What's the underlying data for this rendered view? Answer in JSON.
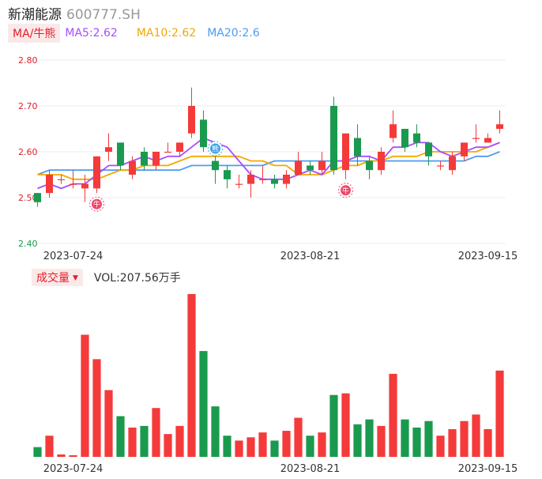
{
  "header": {
    "name": "新潮能源",
    "code": "600777.SH"
  },
  "ma": {
    "toggle_label": "MA/牛熊",
    "ma5": "MA5:2.62",
    "ma10": "MA10:2.62",
    "ma20": "MA20:2.6"
  },
  "volume": {
    "toggle_label": "成交量",
    "value": "VOL:207.56万手"
  },
  "colors": {
    "up": "#f43a3a",
    "down": "#1a9a4e",
    "ma5": "#a64dff",
    "ma10": "#f2a900",
    "ma20": "#4d9cf0"
  },
  "chart_data": {
    "type": "candlestick",
    "y_ticks": [
      "2.80",
      "2.70",
      "2.60",
      "2.50",
      "2.40"
    ],
    "ylim": [
      2.4,
      2.8
    ],
    "x_ticks": [
      {
        "label": "2023-07-24",
        "index": 3
      },
      {
        "label": "2023-08-21",
        "index": 23
      },
      {
        "label": "2023-09-15",
        "index": 38
      }
    ],
    "candles": [
      {
        "o": 2.51,
        "c": 2.49,
        "h": 2.51,
        "l": 2.48
      },
      {
        "o": 2.51,
        "c": 2.55,
        "h": 2.56,
        "l": 2.5
      },
      {
        "o": 2.54,
        "c": 2.54,
        "h": 2.55,
        "l": 2.53
      },
      {
        "o": 2.53,
        "c": 2.53,
        "h": 2.56,
        "l": 2.52
      },
      {
        "o": 2.52,
        "c": 2.53,
        "h": 2.55,
        "l": 2.49
      },
      {
        "o": 2.52,
        "c": 2.59,
        "h": 2.59,
        "l": 2.51
      },
      {
        "o": 2.6,
        "c": 2.61,
        "h": 2.64,
        "l": 2.58
      },
      {
        "o": 2.62,
        "c": 2.57,
        "h": 2.62,
        "l": 2.56
      },
      {
        "o": 2.55,
        "c": 2.58,
        "h": 2.59,
        "l": 2.54
      },
      {
        "o": 2.6,
        "c": 2.57,
        "h": 2.61,
        "l": 2.56
      },
      {
        "o": 2.57,
        "c": 2.6,
        "h": 2.6,
        "l": 2.56
      },
      {
        "o": 2.6,
        "c": 2.6,
        "h": 2.62,
        "l": 2.6
      },
      {
        "o": 2.6,
        "c": 2.62,
        "h": 2.62,
        "l": 2.59
      },
      {
        "o": 2.64,
        "c": 2.7,
        "h": 2.74,
        "l": 2.63
      },
      {
        "o": 2.67,
        "c": 2.61,
        "h": 2.69,
        "l": 2.6
      },
      {
        "o": 2.58,
        "c": 2.56,
        "h": 2.6,
        "l": 2.53
      },
      {
        "o": 2.56,
        "c": 2.54,
        "h": 2.57,
        "l": 2.52
      },
      {
        "o": 2.53,
        "c": 2.53,
        "h": 2.55,
        "l": 2.52
      },
      {
        "o": 2.53,
        "c": 2.55,
        "h": 2.56,
        "l": 2.5
      },
      {
        "o": 2.54,
        "c": 2.54,
        "h": 2.57,
        "l": 2.53
      },
      {
        "o": 2.54,
        "c": 2.53,
        "h": 2.55,
        "l": 2.52
      },
      {
        "o": 2.53,
        "c": 2.55,
        "h": 2.56,
        "l": 2.52
      },
      {
        "o": 2.55,
        "c": 2.58,
        "h": 2.6,
        "l": 2.55
      },
      {
        "o": 2.57,
        "c": 2.56,
        "h": 2.58,
        "l": 2.55
      },
      {
        "o": 2.56,
        "c": 2.58,
        "h": 2.6,
        "l": 2.55
      },
      {
        "o": 2.7,
        "c": 2.56,
        "h": 2.72,
        "l": 2.55
      },
      {
        "o": 2.56,
        "c": 2.64,
        "h": 2.64,
        "l": 2.54
      },
      {
        "o": 2.63,
        "c": 2.59,
        "h": 2.66,
        "l": 2.57
      },
      {
        "o": 2.58,
        "c": 2.56,
        "h": 2.59,
        "l": 2.54
      },
      {
        "o": 2.56,
        "c": 2.6,
        "h": 2.61,
        "l": 2.55
      },
      {
        "o": 2.63,
        "c": 2.66,
        "h": 2.69,
        "l": 2.62
      },
      {
        "o": 2.65,
        "c": 2.61,
        "h": 2.65,
        "l": 2.6
      },
      {
        "o": 2.64,
        "c": 2.62,
        "h": 2.66,
        "l": 2.61
      },
      {
        "o": 2.62,
        "c": 2.59,
        "h": 2.62,
        "l": 2.57
      },
      {
        "o": 2.57,
        "c": 2.57,
        "h": 2.58,
        "l": 2.56
      },
      {
        "o": 2.56,
        "c": 2.59,
        "h": 2.6,
        "l": 2.55
      },
      {
        "o": 2.59,
        "c": 2.62,
        "h": 2.62,
        "l": 2.58
      },
      {
        "o": 2.63,
        "c": 2.63,
        "h": 2.66,
        "l": 2.62
      },
      {
        "o": 2.62,
        "c": 2.63,
        "h": 2.64,
        "l": 2.62
      },
      {
        "o": 2.65,
        "c": 2.66,
        "h": 2.69,
        "l": 2.64
      }
    ],
    "ma5": [
      2.52,
      2.53,
      2.52,
      2.53,
      2.53,
      2.55,
      2.57,
      2.57,
      2.58,
      2.59,
      2.58,
      2.59,
      2.59,
      2.61,
      2.63,
      2.62,
      2.61,
      2.58,
      2.55,
      2.54,
      2.54,
      2.54,
      2.55,
      2.56,
      2.55,
      2.58,
      2.58,
      2.59,
      2.59,
      2.58,
      2.61,
      2.61,
      2.62,
      2.62,
      2.6,
      2.59,
      2.6,
      2.61,
      2.61,
      2.62
    ],
    "ma10": [
      2.55,
      2.55,
      2.55,
      2.54,
      2.54,
      2.54,
      2.55,
      2.56,
      2.56,
      2.57,
      2.57,
      2.57,
      2.58,
      2.59,
      2.59,
      2.59,
      2.59,
      2.59,
      2.58,
      2.58,
      2.57,
      2.57,
      2.55,
      2.55,
      2.55,
      2.56,
      2.57,
      2.57,
      2.58,
      2.58,
      2.59,
      2.59,
      2.59,
      2.6,
      2.6,
      2.6,
      2.6,
      2.6,
      2.61,
      2.62
    ],
    "ma20": [
      2.55,
      2.56,
      2.56,
      2.56,
      2.56,
      2.56,
      2.56,
      2.56,
      2.56,
      2.56,
      2.56,
      2.56,
      2.56,
      2.57,
      2.57,
      2.57,
      2.57,
      2.57,
      2.57,
      2.57,
      2.58,
      2.58,
      2.58,
      2.58,
      2.58,
      2.58,
      2.58,
      2.58,
      2.58,
      2.58,
      2.58,
      2.58,
      2.58,
      2.58,
      2.58,
      2.58,
      2.58,
      2.59,
      2.59,
      2.6
    ],
    "volume_ylim": [
      0,
      100
    ],
    "volume": [
      6,
      13,
      1.5,
      1,
      75,
      60,
      41,
      25,
      18,
      19,
      30,
      14,
      19,
      100,
      65,
      31,
      13,
      10,
      12,
      15,
      10,
      16,
      24,
      13,
      15,
      38,
      39,
      20,
      23,
      19,
      51,
      23,
      18,
      22,
      13,
      17,
      22,
      26,
      17,
      53
    ],
    "markers": [
      {
        "index": 5,
        "label": "牛",
        "type": "bull"
      },
      {
        "index": 15,
        "label": "熊",
        "type": "bear"
      },
      {
        "index": 26,
        "label": "牛",
        "type": "bull"
      }
    ]
  }
}
